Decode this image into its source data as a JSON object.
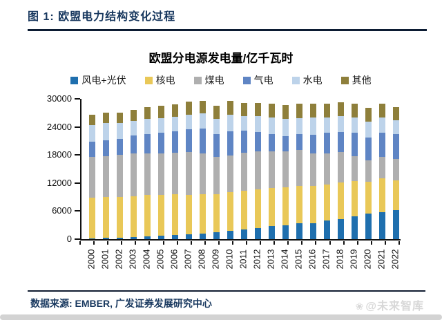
{
  "header": {
    "title": "图 1: 欧盟电力结构变化过程"
  },
  "chart_data": {
    "type": "bar",
    "stacked": true,
    "title": "欧盟分电源发电量/亿千瓦时",
    "unit": "亿千瓦时",
    "categories": [
      2000,
      2001,
      2002,
      2003,
      2004,
      2005,
      2006,
      2007,
      2008,
      2009,
      2010,
      2011,
      2012,
      2013,
      2014,
      2015,
      2016,
      2017,
      2018,
      2019,
      2020,
      2021,
      2022
    ],
    "series": [
      {
        "name": "风电+光伏",
        "color": "#1F6FAE",
        "values": [
          220,
          270,
          360,
          440,
          580,
          700,
          820,
          1040,
          1210,
          1440,
          1710,
          2060,
          2430,
          2760,
          3000,
          3380,
          3410,
          3970,
          4270,
          4810,
          5500,
          5750,
          6200
        ]
      },
      {
        "name": "核电",
        "color": "#E9C858",
        "values": [
          8590,
          8730,
          8720,
          8770,
          8870,
          8830,
          8780,
          8470,
          8470,
          8210,
          8380,
          8290,
          8170,
          8140,
          8130,
          8050,
          7910,
          7700,
          7790,
          7650,
          6830,
          7250,
          6400
        ]
      },
      {
        "name": "煤电",
        "color": "#AFAFAF",
        "values": [
          8840,
          8800,
          8900,
          9150,
          8950,
          8800,
          8900,
          9100,
          8650,
          7900,
          7800,
          8100,
          8200,
          7900,
          7700,
          7600,
          7000,
          6700,
          6500,
          5300,
          4450,
          4600,
          4500
        ]
      },
      {
        "name": "气电",
        "color": "#5F85C4",
        "values": [
          3250,
          3350,
          3500,
          3800,
          4100,
          4450,
          4600,
          4950,
          5250,
          4900,
          5100,
          4750,
          4100,
          3600,
          3250,
          3450,
          4050,
          4400,
          4350,
          5000,
          4950,
          5100,
          5400
        ]
      },
      {
        "name": "水电",
        "color": "#BDD3EA",
        "values": [
          3560,
          3720,
          3280,
          3060,
          3190,
          3100,
          3100,
          3090,
          3270,
          3300,
          3650,
          3100,
          3350,
          3600,
          3700,
          3450,
          3650,
          3250,
          3450,
          3300,
          3450,
          3350,
          2900
        ]
      },
      {
        "name": "其他",
        "color": "#8E7F3B",
        "values": [
          2150,
          2230,
          2300,
          2400,
          2500,
          2600,
          2650,
          2700,
          2760,
          2760,
          2850,
          2850,
          2900,
          2950,
          2950,
          3000,
          3000,
          3000,
          2950,
          2900,
          2850,
          2900,
          2850
        ]
      }
    ],
    "ylim": [
      0,
      30000
    ],
    "yticks": [
      0,
      6000,
      12000,
      18000,
      24000,
      30000
    ],
    "grid": false,
    "legend_position": "top"
  },
  "footer": {
    "source": "数据来源: EMBER, 广发证券发展研究中心",
    "watermark_icon": "❀",
    "watermark": "@未来智库"
  }
}
